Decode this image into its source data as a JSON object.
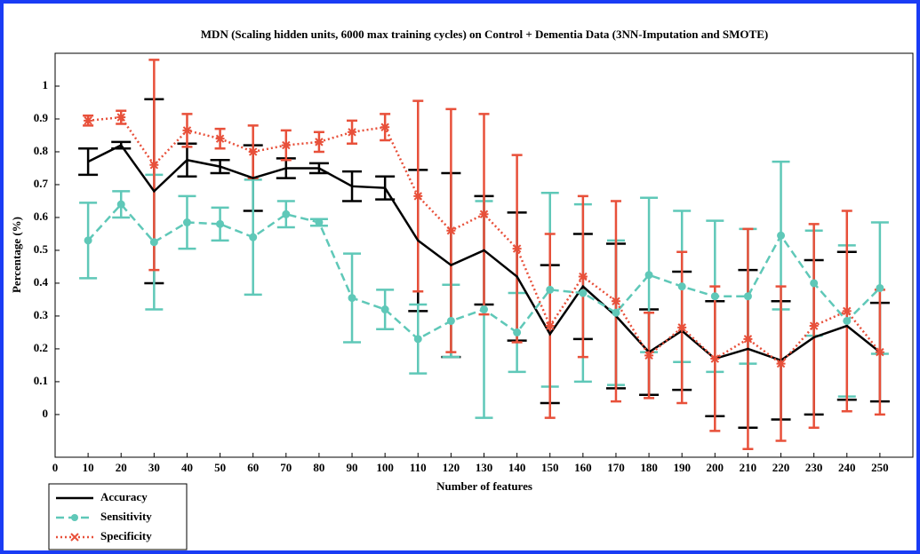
{
  "chart_data": {
    "type": "errorbar-line",
    "title": "MDN (Scaling hidden units, 6000 max training cycles) on Control + Dementia Data (3NN-Imputation and SMOTE)",
    "x_label": "Number of features",
    "y_label": "Percentage (%)",
    "x": [
      10,
      20,
      30,
      40,
      50,
      60,
      70,
      80,
      90,
      100,
      110,
      120,
      130,
      140,
      150,
      160,
      170,
      180,
      190,
      200,
      210,
      220,
      230,
      240,
      250
    ],
    "xlim": [
      0,
      260
    ],
    "xticks": [
      0,
      10,
      20,
      30,
      40,
      50,
      60,
      70,
      80,
      90,
      100,
      110,
      120,
      130,
      140,
      150,
      160,
      170,
      180,
      190,
      200,
      210,
      220,
      230,
      240,
      250
    ],
    "ylim": [
      -0.13,
      1.1
    ],
    "yticks": [
      0,
      0.1,
      0.2,
      0.3,
      0.4,
      0.5,
      0.6,
      0.7,
      0.8,
      0.9,
      1
    ],
    "legend": "bottom-left",
    "series": [
      {
        "name": "Accuracy",
        "color": "#000000",
        "dash": "solid",
        "marker": "none",
        "values": [
          0.77,
          0.82,
          0.68,
          0.775,
          0.755,
          0.72,
          0.75,
          0.75,
          0.695,
          0.69,
          0.53,
          0.455,
          0.5,
          0.42,
          0.245,
          0.39,
          0.3,
          0.19,
          0.255,
          0.17,
          0.2,
          0.165,
          0.235,
          0.27,
          0.19
        ],
        "errors": [
          0.04,
          0.01,
          0.28,
          0.05,
          0.02,
          0.1,
          0.03,
          0.015,
          0.045,
          0.035,
          0.215,
          0.28,
          0.165,
          0.195,
          0.21,
          0.16,
          0.22,
          0.13,
          0.18,
          0.175,
          0.24,
          0.18,
          0.235,
          0.225,
          0.15
        ]
      },
      {
        "name": "Sensitivity",
        "color": "#5fc8b8",
        "dash": "dashed",
        "marker": "circle",
        "values": [
          0.53,
          0.64,
          0.525,
          0.585,
          0.58,
          0.54,
          0.61,
          0.585,
          0.355,
          0.32,
          0.23,
          0.285,
          0.32,
          0.25,
          0.38,
          0.37,
          0.31,
          0.425,
          0.39,
          0.36,
          0.36,
          0.545,
          0.4,
          0.285,
          0.385
        ],
        "errors": [
          0.115,
          0.04,
          0.205,
          0.08,
          0.05,
          0.175,
          0.04,
          0.01,
          0.135,
          0.06,
          0.105,
          0.11,
          0.33,
          0.12,
          0.295,
          0.27,
          0.22,
          0.235,
          0.23,
          0.23,
          0.205,
          0.225,
          0.16,
          0.23,
          0.2
        ]
      },
      {
        "name": "Specificity",
        "color": "#e8503a",
        "dash": "dotted",
        "marker": "star",
        "values": [
          0.895,
          0.905,
          0.76,
          0.865,
          0.84,
          0.8,
          0.82,
          0.83,
          0.86,
          0.875,
          0.665,
          0.56,
          0.61,
          0.505,
          0.27,
          0.42,
          0.345,
          0.18,
          0.265,
          0.17,
          0.23,
          0.155,
          0.27,
          0.315,
          0.19
        ],
        "errors": [
          0.015,
          0.02,
          0.32,
          0.05,
          0.03,
          0.08,
          0.045,
          0.03,
          0.035,
          0.04,
          0.29,
          0.37,
          0.305,
          0.285,
          0.28,
          0.245,
          0.305,
          0.13,
          0.23,
          0.22,
          0.335,
          0.235,
          0.31,
          0.305,
          0.19
        ]
      }
    ]
  }
}
